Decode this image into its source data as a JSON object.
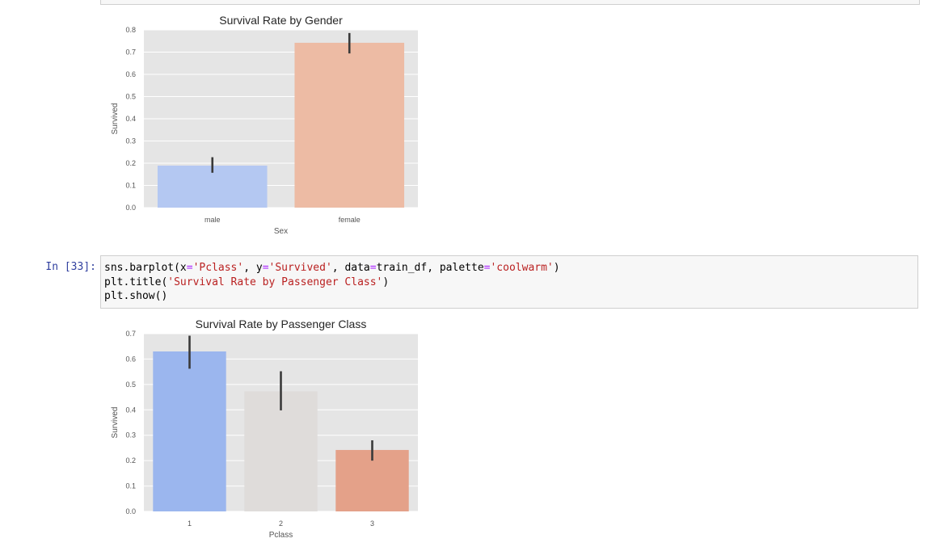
{
  "notebook": {
    "cell_prompt": "In [33]:",
    "code_lines": [
      [
        {
          "t": "sns.barplot(x",
          "k": "plain"
        },
        {
          "t": "=",
          "k": "op"
        },
        {
          "t": "'Pclass'",
          "k": "str"
        },
        {
          "t": ", y",
          "k": "plain"
        },
        {
          "t": "=",
          "k": "op"
        },
        {
          "t": "'Survived'",
          "k": "str"
        },
        {
          "t": ", data",
          "k": "plain"
        },
        {
          "t": "=",
          "k": "op"
        },
        {
          "t": "train_df, palette",
          "k": "plain"
        },
        {
          "t": "=",
          "k": "op"
        },
        {
          "t": "'coolwarm'",
          "k": "str"
        },
        {
          "t": ")",
          "k": "plain"
        }
      ],
      [
        {
          "t": "plt.title(",
          "k": "plain"
        },
        {
          "t": "'Survival Rate by Passenger Class'",
          "k": "str"
        },
        {
          "t": ")",
          "k": "plain"
        }
      ],
      [
        {
          "t": "plt.show()",
          "k": "plain"
        }
      ]
    ]
  },
  "chart_data": [
    {
      "type": "bar",
      "title": "Survival Rate by Gender",
      "xlabel": "Sex",
      "ylabel": "Survived",
      "categories": [
        "male",
        "female"
      ],
      "values": [
        0.189,
        0.742
      ],
      "error_bars": [
        [
          0.157,
          0.227
        ],
        [
          0.694,
          0.786
        ]
      ],
      "colors": [
        "#b4c8f2",
        "#edbba4"
      ],
      "ylim": [
        0,
        0.8
      ],
      "yticks": [
        "0.0",
        "0.1",
        "0.2",
        "0.3",
        "0.4",
        "0.5",
        "0.6",
        "0.7",
        "0.8"
      ],
      "grid": true
    },
    {
      "type": "bar",
      "title": "Survival Rate by Passenger Class",
      "xlabel": "Pclass",
      "ylabel": "Survived",
      "categories": [
        "1",
        "2",
        "3"
      ],
      "values": [
        0.63,
        0.473,
        0.242
      ],
      "error_bars": [
        [
          0.562,
          0.692
        ],
        [
          0.398,
          0.552
        ],
        [
          0.2,
          0.28
        ]
      ],
      "colors": [
        "#9bb6ee",
        "#dfdcda",
        "#e4a189"
      ],
      "ylim": [
        0,
        0.7
      ],
      "yticks": [
        "0.0",
        "0.1",
        "0.2",
        "0.3",
        "0.4",
        "0.5",
        "0.6",
        "0.7"
      ],
      "grid": true
    }
  ]
}
